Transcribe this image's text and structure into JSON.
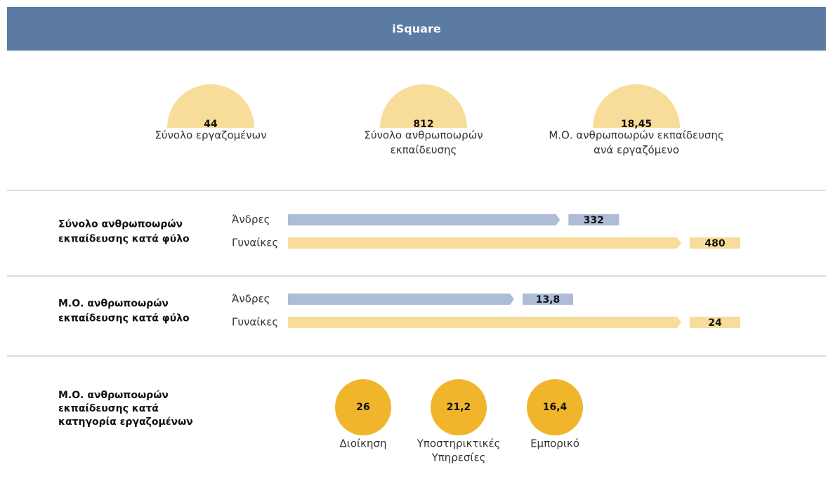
{
  "header": {
    "title": "iSquare"
  },
  "kpis": [
    {
      "value": 44,
      "label_lines": [
        "Σύνολο εργαζομένων"
      ]
    },
    {
      "value": 812,
      "label_lines": [
        "Σύνολο ανθρωποωρών",
        "εκπαίδευσης"
      ]
    },
    {
      "value": 18.45,
      "value_label": "18,45",
      "label_lines": [
        "Μ.Ο. ανθρωποωρών εκπαίδευσης",
        "ανά εργαζόμενο"
      ]
    }
  ],
  "sections": [
    {
      "title_lines": [
        "Σύνολο ανθρωποωρών",
        "εκπαίδευσης κατά φύλο"
      ],
      "categories": [
        "Άνδρες",
        "Γυναίκες"
      ],
      "values": [
        332,
        480
      ]
    },
    {
      "title_lines": [
        "Μ.Ο. ανθρωποωρών",
        "εκπαίδευσης κατά φύλο"
      ],
      "categories": [
        "Άνδρες",
        "Γυναίκες"
      ],
      "values": [
        13.8,
        24
      ],
      "value_labels": [
        "13,8",
        "24"
      ]
    }
  ],
  "category_section": {
    "title_lines": [
      "Μ.Ο. ανθρωποωρών",
      "εκπαίδευσης κατά",
      "κατηγορία εργαζομένων"
    ],
    "categories": [
      [
        "Διοίκηση"
      ],
      [
        "Υποστηρικτικές",
        "Υπηρεσίες"
      ],
      [
        "Εμπορικό"
      ]
    ],
    "values": [
      26,
      21.2,
      16.4
    ],
    "value_labels": [
      "26",
      "21,2",
      "16,4"
    ]
  }
}
